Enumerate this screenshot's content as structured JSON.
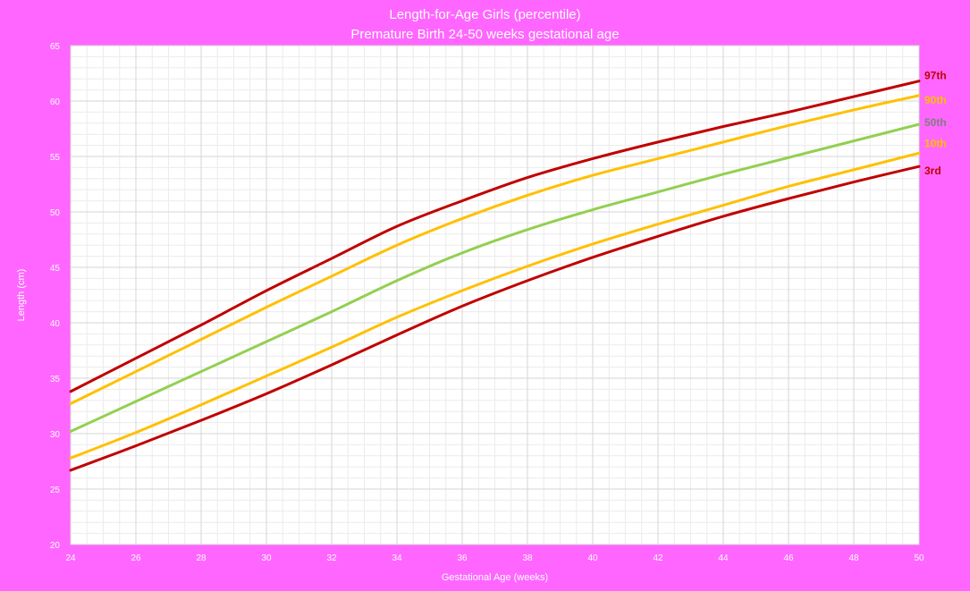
{
  "chart_data": {
    "type": "line",
    "title": "Length-for-Age Girls (percentile)",
    "subtitle": "Premature Birth 24-50 weeks gestational age",
    "xlabel": "Gestational Age (weeks)",
    "ylabel": "Length (cm)",
    "xlim": [
      24,
      50
    ],
    "ylim": [
      20,
      65
    ],
    "x_ticks": [
      24,
      26,
      28,
      30,
      32,
      34,
      36,
      38,
      40,
      42,
      44,
      46,
      48,
      50
    ],
    "y_ticks": [
      20,
      25,
      30,
      35,
      40,
      45,
      50,
      55,
      60,
      65
    ],
    "grid": true,
    "x": [
      24,
      26,
      28,
      30,
      32,
      34,
      36,
      38,
      40,
      42,
      44,
      46,
      48,
      50
    ],
    "series": [
      {
        "name": "97th",
        "color": "#c00000",
        "label_color": "#c00000",
        "values": [
          33.8,
          36.8,
          39.8,
          42.9,
          45.8,
          48.7,
          51.0,
          53.1,
          54.8,
          56.3,
          57.7,
          59.0,
          60.4,
          61.8
        ]
      },
      {
        "name": "90th",
        "color": "#ffc000",
        "label_color": "#ffc000",
        "values": [
          32.7,
          35.6,
          38.5,
          41.4,
          44.2,
          47.0,
          49.4,
          51.5,
          53.3,
          54.8,
          56.3,
          57.8,
          59.2,
          60.5
        ]
      },
      {
        "name": "50th",
        "color": "#92d050",
        "label_color": "#7f7f7f",
        "values": [
          30.2,
          32.9,
          35.6,
          38.3,
          41.0,
          43.8,
          46.3,
          48.4,
          50.2,
          51.8,
          53.4,
          54.9,
          56.4,
          57.9
        ]
      },
      {
        "name": "10th",
        "color": "#ffc000",
        "label_color": "#ffc000",
        "values": [
          27.8,
          30.1,
          32.6,
          35.2,
          37.8,
          40.5,
          42.9,
          45.1,
          47.1,
          48.9,
          50.6,
          52.3,
          53.8,
          55.3
        ]
      },
      {
        "name": "3rd",
        "color": "#c00000",
        "label_color": "#c00000",
        "values": [
          26.7,
          28.9,
          31.2,
          33.6,
          36.2,
          38.9,
          41.5,
          43.8,
          45.9,
          47.8,
          49.6,
          51.2,
          52.7,
          54.1
        ]
      }
    ]
  }
}
